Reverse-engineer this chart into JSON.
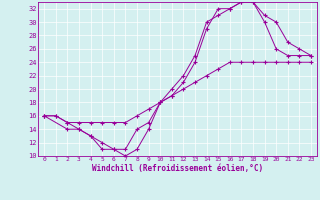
{
  "xlabel": "Windchill (Refroidissement éolien,°C)",
  "bg_color": "#d4f0f0",
  "line_color": "#990099",
  "xlim": [
    -0.5,
    23.5
  ],
  "ylim": [
    10,
    33
  ],
  "xticks": [
    0,
    1,
    2,
    3,
    4,
    5,
    6,
    7,
    8,
    9,
    10,
    11,
    12,
    13,
    14,
    15,
    16,
    17,
    18,
    19,
    20,
    21,
    22,
    23
  ],
  "yticks": [
    10,
    12,
    14,
    16,
    18,
    20,
    22,
    24,
    26,
    28,
    30,
    32
  ],
  "line1_x": [
    0,
    1,
    2,
    3,
    4,
    5,
    6,
    7,
    8,
    9,
    10,
    11,
    12,
    13,
    14,
    15,
    16,
    17,
    18,
    19,
    20,
    21,
    22,
    23
  ],
  "line1_y": [
    16,
    16,
    15,
    14,
    13,
    11,
    11,
    10,
    11,
    14,
    18,
    20,
    22,
    25,
    30,
    31,
    32,
    33,
    33,
    30,
    26,
    25,
    25,
    25
  ],
  "line2_x": [
    0,
    2,
    3,
    4,
    5,
    6,
    7,
    8,
    9,
    10,
    11,
    12,
    13,
    14,
    15,
    16,
    17,
    18,
    19,
    20,
    21,
    22,
    23
  ],
  "line2_y": [
    16,
    14,
    14,
    13,
    12,
    11,
    11,
    14,
    15,
    18,
    19,
    21,
    24,
    29,
    32,
    32,
    33,
    33,
    31,
    30,
    27,
    26,
    25
  ],
  "line3_x": [
    0,
    1,
    2,
    3,
    4,
    5,
    6,
    7,
    8,
    9,
    10,
    11,
    12,
    13,
    14,
    15,
    16,
    17,
    18,
    19,
    20,
    21,
    22,
    23
  ],
  "line3_y": [
    16,
    16,
    15,
    15,
    15,
    15,
    15,
    15,
    16,
    17,
    18,
    19,
    20,
    21,
    22,
    23,
    24,
    24,
    24,
    24,
    24,
    24,
    24,
    24
  ]
}
